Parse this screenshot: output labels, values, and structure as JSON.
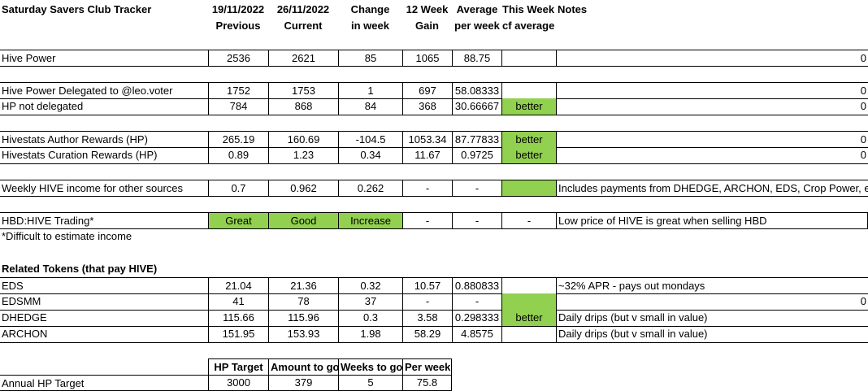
{
  "header": {
    "title": "Saturday Savers Club Tracker",
    "col_prev_date": "19/11/2022",
    "col_prev": "Previous",
    "col_curr_date": "26/11/2022",
    "col_curr": "Current",
    "col_change_1": "Change",
    "col_change_2": "in week",
    "col_gain_1": "12 Week",
    "col_gain_2": "Gain",
    "col_avg_1": "Average",
    "col_avg_2": "per week",
    "col_cf_1": "This Week",
    "col_cf_2": "cf average",
    "col_notes": "Notes"
  },
  "rows": {
    "hive_power": {
      "label": "Hive Power",
      "prev": "2536",
      "curr": "2621",
      "change": "85",
      "gain": "1065",
      "avg": "88.75",
      "cf": "",
      "notes": "",
      "tail": "0"
    },
    "hp_delegated": {
      "label": "Hive Power Delegated to @leo.voter",
      "prev": "1752",
      "curr": "1753",
      "change": "1",
      "gain": "697",
      "avg": "58.08333",
      "cf": "",
      "notes": "",
      "tail": "0"
    },
    "hp_not_delegated": {
      "label": "HP not delegated",
      "prev": "784",
      "curr": "868",
      "change": "84",
      "gain": "368",
      "avg": "30.66667",
      "cf": "better",
      "notes": "",
      "tail": "0"
    },
    "author_rewards": {
      "label": "Hivestats Author Rewards (HP)",
      "prev": "265.19",
      "curr": "160.69",
      "change": "-104.5",
      "gain": "1053.34",
      "avg": "87.77833",
      "cf": "better",
      "notes": "",
      "tail": "0"
    },
    "curation_rewards": {
      "label": "Hivestats Curation Rewards (HP)",
      "prev": "0.89",
      "curr": "1.23",
      "change": "0.34",
      "gain": "11.67",
      "avg": "0.9725",
      "cf": "better",
      "notes": "",
      "tail": "0"
    },
    "weekly_income": {
      "label": "Weekly HIVE income for other sources",
      "prev": "0.7",
      "curr": "0.962",
      "change": "0.262",
      "gain": "-",
      "avg": "-",
      "cf": "",
      "notes": "Includes payments from DHEDGE, ARCHON, EDS, Crop Power, e",
      "tail": ""
    },
    "hbd_trading": {
      "label": "HBD:HIVE Trading*",
      "prev": "Great",
      "curr": "Good",
      "change": "Increase",
      "gain": "-",
      "avg": "-",
      "cf": "-",
      "notes": "Low price of HIVE is great when selling HBD",
      "tail": ""
    },
    "footnote": {
      "label": "*Difficult to estimate income"
    },
    "related_heading": {
      "label": "Related Tokens (that pay HIVE)"
    },
    "eds": {
      "label": "EDS",
      "prev": "21.04",
      "curr": "21.36",
      "change": "0.32",
      "gain": "10.57",
      "avg": "0.880833",
      "cf": "",
      "notes": "~32% APR - pays out mondays",
      "tail": ""
    },
    "edsmm": {
      "label": "EDSMM",
      "prev": "41",
      "curr": "78",
      "change": "37",
      "gain": "-",
      "avg": "-",
      "cf": "",
      "notes": "",
      "tail": "0"
    },
    "dhedge": {
      "label": "DHEDGE",
      "prev": "115.66",
      "curr": "115.96",
      "change": "0.3",
      "gain": "3.58",
      "avg": "0.298333",
      "cf": "better",
      "notes": "Daily drips (but v small in value)",
      "tail": ""
    },
    "archon": {
      "label": "ARCHON",
      "prev": "151.95",
      "curr": "153.93",
      "change": "1.98",
      "gain": "58.29",
      "avg": "4.8575",
      "cf": "",
      "notes": "Daily drips (but v small in value)",
      "tail": ""
    }
  },
  "target": {
    "h_target": "HP Target",
    "h_amount": "Amount to go",
    "h_weeks": "Weeks to go",
    "h_per_week": "Per week",
    "label": "Annual HP Target",
    "target": "3000",
    "amount": "379",
    "weeks": "5",
    "per_week": "75.8"
  },
  "colors": {
    "highlight": "#92d050",
    "grid": "#000000",
    "background": "#ffffff"
  }
}
